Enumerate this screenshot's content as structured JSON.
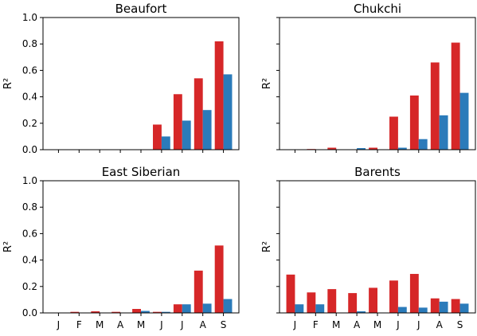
{
  "colors": {
    "series_a": "#d62728",
    "series_b": "#2b7bba"
  },
  "chart_data": [
    {
      "type": "bar",
      "title": "Beaufort",
      "categories": [
        "J",
        "F",
        "M",
        "A",
        "M",
        "J",
        "J",
        "A",
        "S"
      ],
      "ylabel": "R²",
      "ylim": [
        0,
        1.0
      ],
      "yticks": [
        "0.0",
        "0.2",
        "0.4",
        "0.6",
        "0.8",
        "1.0"
      ],
      "show_xticklabels": false,
      "show_yticklabels": true,
      "series": [
        {
          "values": [
            0.0,
            0.0,
            0.0,
            0.0,
            0.0,
            0.19,
            0.42,
            0.54,
            0.82
          ]
        },
        {
          "values": [
            0.0,
            0.0,
            0.0,
            0.0,
            0.0,
            0.1,
            0.22,
            0.3,
            0.57
          ]
        }
      ]
    },
    {
      "type": "bar",
      "title": "Chukchi",
      "categories": [
        "J",
        "F",
        "M",
        "A",
        "M",
        "J",
        "J",
        "A",
        "S"
      ],
      "ylabel": "R²",
      "ylim": [
        0,
        1.0
      ],
      "yticks": [
        "0.0",
        "0.2",
        "0.4",
        "0.6",
        "0.8",
        "1.0"
      ],
      "show_xticklabels": false,
      "show_yticklabels": false,
      "series": [
        {
          "values": [
            0.0,
            0.005,
            0.015,
            0.0,
            0.015,
            0.25,
            0.41,
            0.66,
            0.81
          ]
        },
        {
          "values": [
            0.0,
            0.0,
            0.0,
            0.012,
            0.0,
            0.015,
            0.08,
            0.26,
            0.43
          ]
        }
      ]
    },
    {
      "type": "bar",
      "title": "East Siberian",
      "categories": [
        "J",
        "F",
        "M",
        "A",
        "M",
        "J",
        "J",
        "A",
        "S"
      ],
      "ylabel": "R²",
      "ylim": [
        0,
        1.0
      ],
      "yticks": [
        "0.0",
        "0.2",
        "0.4",
        "0.6",
        "0.8",
        "1.0"
      ],
      "show_xticklabels": true,
      "show_yticklabels": true,
      "series": [
        {
          "values": [
            0.0,
            0.008,
            0.012,
            0.008,
            0.03,
            0.008,
            0.065,
            0.32,
            0.51
          ]
        },
        {
          "values": [
            0.0,
            0.0,
            0.0,
            0.0,
            0.015,
            0.008,
            0.065,
            0.07,
            0.105
          ]
        }
      ]
    },
    {
      "type": "bar",
      "title": "Barents",
      "categories": [
        "J",
        "F",
        "M",
        "A",
        "M",
        "J",
        "J",
        "A",
        "S"
      ],
      "ylabel": "R²",
      "ylim": [
        0,
        1.0
      ],
      "yticks": [
        "0.0",
        "0.2",
        "0.4",
        "0.6",
        "0.8",
        "1.0"
      ],
      "show_xticklabels": true,
      "show_yticklabels": false,
      "series": [
        {
          "values": [
            0.29,
            0.155,
            0.18,
            0.15,
            0.19,
            0.245,
            0.295,
            0.11,
            0.105
          ]
        },
        {
          "values": [
            0.065,
            0.065,
            0.0,
            0.012,
            0.0,
            0.045,
            0.04,
            0.085,
            0.07
          ]
        }
      ]
    }
  ]
}
